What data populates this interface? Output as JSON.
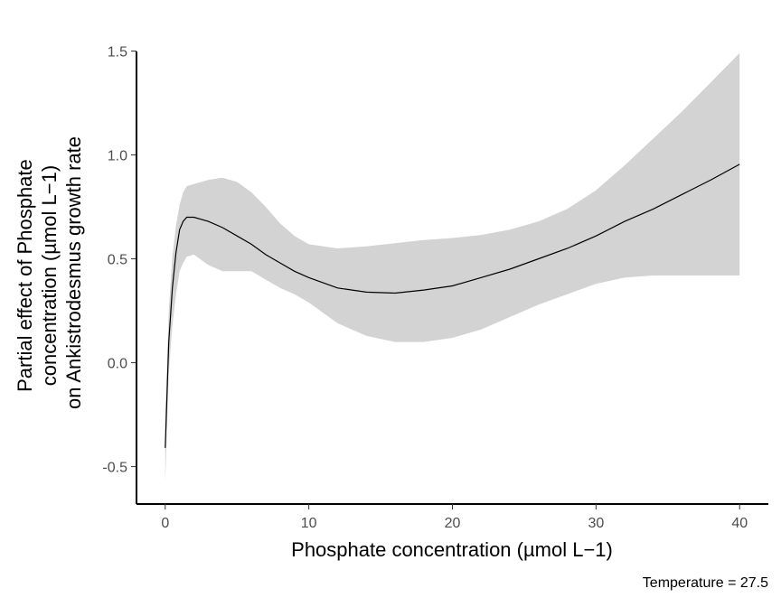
{
  "chart_data": {
    "type": "line",
    "xlabel": "Phosphate concentration (µmol L−1)",
    "ylabel_lines": [
      "Partial effect of Phosphate",
      "concentration (µmol L−1)",
      "on Ankistrodesmus growth rate"
    ],
    "caption": "Temperature = 27.5",
    "xlim": [
      -2,
      42
    ],
    "ylim": [
      -0.68,
      1.55
    ],
    "x_ticks": [
      0,
      10,
      20,
      30,
      40
    ],
    "x_tick_labels": [
      "0",
      "10",
      "20",
      "30",
      "40"
    ],
    "y_ticks": [
      -0.5,
      0.0,
      0.5,
      1.0,
      1.5
    ],
    "y_tick_labels": [
      "-0.5",
      "0.0",
      "0.5",
      "1.0",
      "1.5"
    ],
    "grid": false,
    "colors": {
      "line": "#000000",
      "band": "#d3d3d3",
      "axis": "#000000",
      "tick_label": "#4d4d4d"
    },
    "series": [
      {
        "x": [
          0,
          0.25,
          0.5,
          0.75,
          1.0,
          1.25,
          1.5,
          2.0,
          3.0,
          4.0,
          5.0,
          6.0,
          7.0,
          8.0,
          9.0,
          10.0,
          12.0,
          14.0,
          16.0,
          18.0,
          20.0,
          22.0,
          24.0,
          26.0,
          28.0,
          30.0,
          32.0,
          34.0,
          36.0,
          38.0,
          40.0
        ],
        "y": [
          -0.41,
          0.1,
          0.36,
          0.53,
          0.64,
          0.68,
          0.7,
          0.7,
          0.68,
          0.65,
          0.61,
          0.57,
          0.52,
          0.48,
          0.44,
          0.41,
          0.36,
          0.34,
          0.335,
          0.35,
          0.37,
          0.41,
          0.45,
          0.5,
          0.55,
          0.61,
          0.68,
          0.74,
          0.81,
          0.88,
          0.955
        ],
        "lower": [
          -0.57,
          -0.05,
          0.18,
          0.33,
          0.44,
          0.48,
          0.51,
          0.52,
          0.47,
          0.44,
          0.44,
          0.44,
          0.4,
          0.36,
          0.33,
          0.29,
          0.19,
          0.13,
          0.1,
          0.1,
          0.12,
          0.16,
          0.22,
          0.28,
          0.33,
          0.38,
          0.41,
          0.42,
          0.42,
          0.42,
          0.42
        ],
        "upper": [
          -0.25,
          0.25,
          0.51,
          0.66,
          0.76,
          0.82,
          0.85,
          0.86,
          0.88,
          0.89,
          0.87,
          0.82,
          0.75,
          0.67,
          0.61,
          0.57,
          0.55,
          0.56,
          0.575,
          0.59,
          0.6,
          0.615,
          0.64,
          0.68,
          0.74,
          0.83,
          0.95,
          1.08,
          1.21,
          1.35,
          1.49
        ]
      }
    ]
  }
}
